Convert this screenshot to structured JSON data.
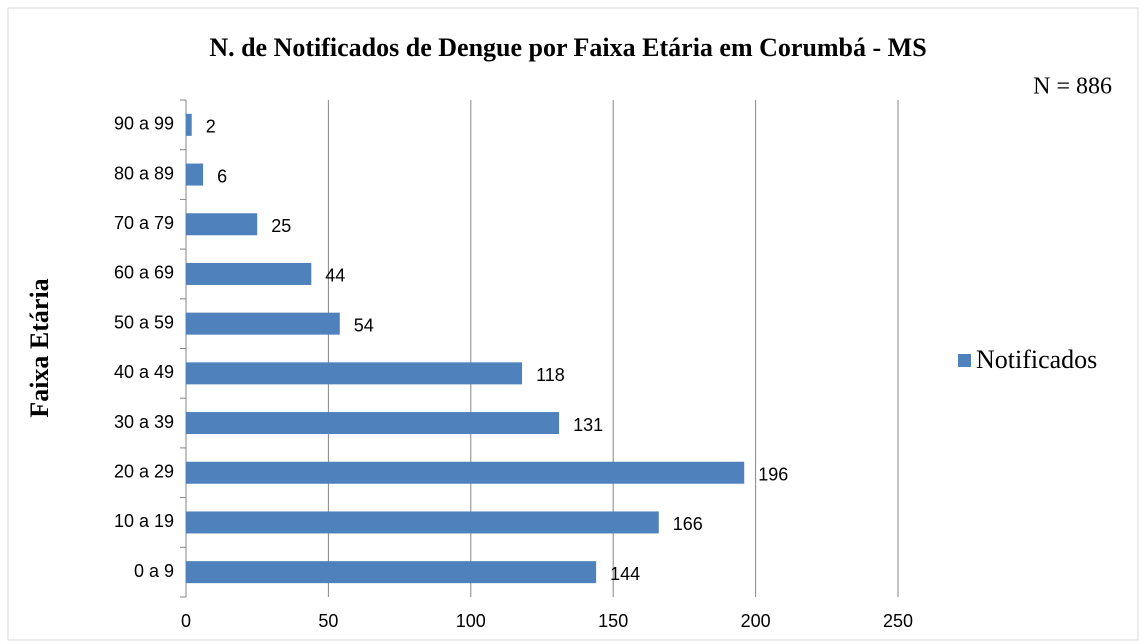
{
  "chart_data": {
    "type": "bar",
    "orientation": "horizontal",
    "title": "N. de Notificados de Dengue por Faixa Etária em Corumbá - MS",
    "annotation": "N = 886",
    "y_label": "Faixa Etária",
    "categories": [
      "0 a 9",
      "10 a 19",
      "20 a 29",
      "30 a 39",
      "40 a 49",
      "50 a 59",
      "60 a 69",
      "70 a 79",
      "80 a 89",
      "90 a 99"
    ],
    "series": [
      {
        "name": "Notificados",
        "color": "#4f81bd",
        "values": [
          144,
          166,
          196,
          131,
          118,
          54,
          44,
          25,
          6,
          2
        ]
      }
    ],
    "xlim": [
      0,
      250
    ],
    "xticks": [
      0,
      50,
      100,
      150,
      200,
      250
    ],
    "grid": true,
    "legend": "right"
  }
}
